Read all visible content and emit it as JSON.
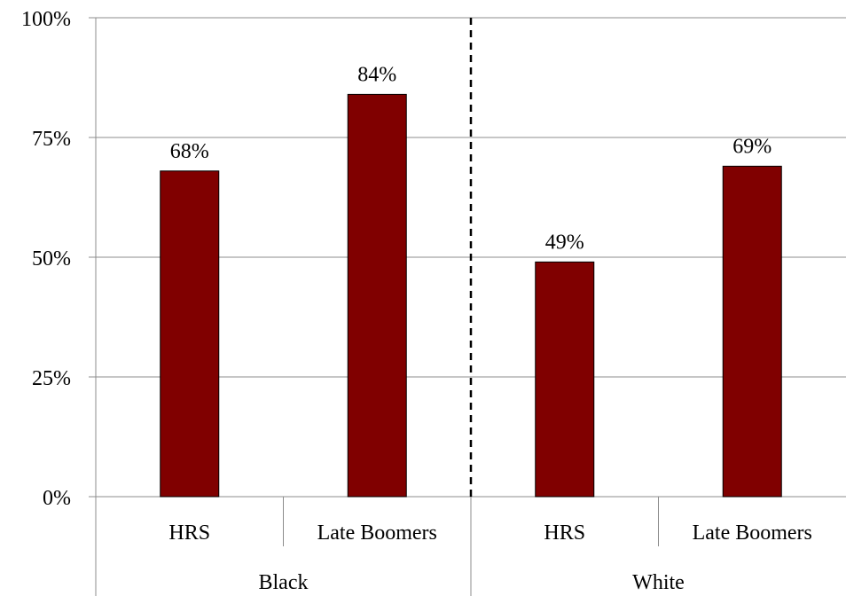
{
  "chart_data": {
    "type": "bar",
    "groups": [
      {
        "label": "Black",
        "categories": [
          "HRS",
          "Late Boomers"
        ],
        "values": [
          68,
          84
        ],
        "value_labels": [
          "68%",
          "84%"
        ]
      },
      {
        "label": "White",
        "categories": [
          "HRS",
          "Late Boomers"
        ],
        "values": [
          49,
          69
        ],
        "value_labels": [
          "49%",
          "69%"
        ]
      }
    ],
    "ylim": [
      0,
      100
    ],
    "yticks": [
      0,
      25,
      50,
      75,
      100
    ],
    "ytick_labels": [
      "0%",
      "25%",
      "50%",
      "75%",
      "100%"
    ],
    "grid": true,
    "group_divider": "dashed",
    "bar_color": "#800000"
  }
}
